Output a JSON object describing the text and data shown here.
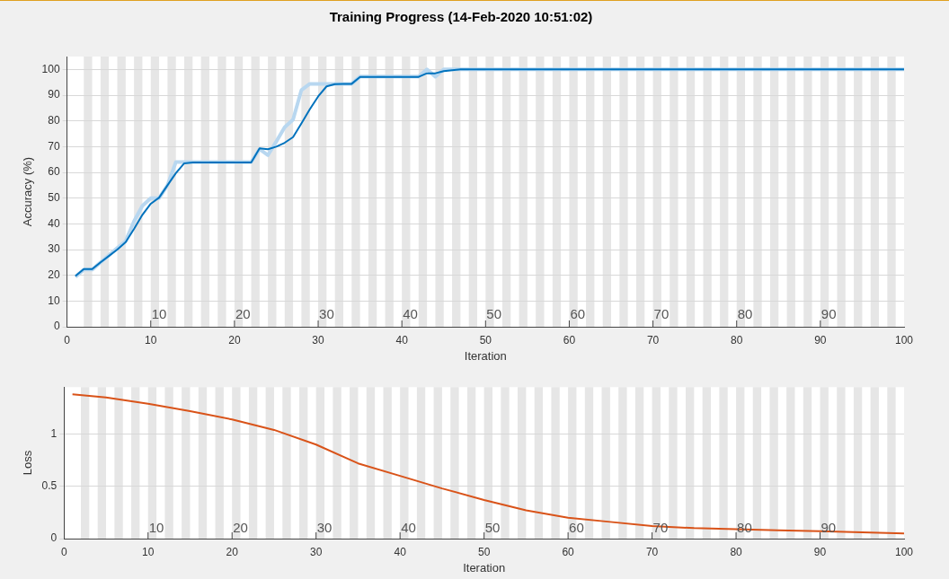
{
  "chart_data": [
    {
      "type": "line",
      "title": "Training Progress (14-Feb-2020 10:51:02)",
      "xlabel": "Iteration",
      "ylabel": "Accuracy (%)",
      "xlim": [
        0,
        100
      ],
      "xticks": [
        0,
        10,
        20,
        30,
        40,
        50,
        60,
        70,
        80,
        90,
        100
      ],
      "ylim": [
        0,
        105
      ],
      "yticks": [
        0,
        10,
        20,
        30,
        40,
        50,
        60,
        70,
        80,
        90,
        100
      ],
      "grid": "y",
      "legend": false,
      "marker": "none",
      "line_style": "solid",
      "series": [
        {
          "color": "#b8d7f0",
          "x": [
            1,
            2,
            3,
            4,
            5,
            6,
            7,
            8,
            9,
            10,
            11,
            12,
            13,
            14,
            15,
            16,
            17,
            18,
            19,
            20,
            21,
            22,
            23,
            24,
            25,
            26,
            27,
            28,
            29,
            30,
            31,
            32,
            33,
            34,
            35,
            36,
            37,
            38,
            39,
            40,
            41,
            42,
            43,
            44,
            45,
            100
          ],
          "values": [
            19.4,
            22.2,
            22.2,
            25,
            27.8,
            30.6,
            33.3,
            41,
            47,
            50,
            50,
            55,
            64,
            64,
            64,
            64,
            64,
            64,
            64,
            64,
            64,
            64,
            69,
            66.7,
            72,
            77.5,
            80.5,
            92,
            94.4,
            94.4,
            94.4,
            94.4,
            94.4,
            94.4,
            97.2,
            97.2,
            97.2,
            97.2,
            97.2,
            97.2,
            97.2,
            97.2,
            100,
            97.2,
            100,
            100
          ]
        },
        {
          "color": "#0072bd",
          "x": [
            1,
            2,
            3,
            4,
            5,
            6,
            7,
            8,
            9,
            10,
            11,
            12,
            13,
            14,
            15,
            16,
            17,
            18,
            19,
            20,
            21,
            22,
            23,
            24,
            25,
            26,
            27,
            28,
            29,
            30,
            31,
            32,
            33,
            34,
            35,
            36,
            37,
            38,
            39,
            40,
            41,
            42,
            43,
            44,
            45,
            46,
            47,
            100
          ],
          "values": [
            19.7,
            22.4,
            22.4,
            25,
            27.5,
            30,
            32.9,
            38,
            43.5,
            47.8,
            50.2,
            55,
            59.7,
            63.5,
            63.8,
            63.8,
            63.8,
            63.8,
            63.8,
            63.8,
            63.8,
            63.8,
            69.3,
            69,
            70,
            71.5,
            73.7,
            79,
            84.5,
            89.5,
            93.4,
            94.3,
            94.4,
            94.4,
            97.1,
            97.1,
            97.1,
            97.1,
            97.1,
            97.1,
            97.1,
            97.1,
            98.5,
            98.5,
            99.3,
            99.7,
            100,
            100
          ]
        }
      ],
      "annotations": [
        {
          "text": "10",
          "x": 10,
          "y": 2
        },
        {
          "text": "20",
          "x": 20,
          "y": 2
        },
        {
          "text": "30",
          "x": 30,
          "y": 2
        },
        {
          "text": "40",
          "x": 40,
          "y": 2
        },
        {
          "text": "50",
          "x": 50,
          "y": 2
        },
        {
          "text": "60",
          "x": 60,
          "y": 2
        },
        {
          "text": "70",
          "x": 70,
          "y": 2
        },
        {
          "text": "80",
          "x": 80,
          "y": 2
        },
        {
          "text": "90",
          "x": 90,
          "y": 2
        }
      ],
      "bands": [
        {
          "axis": "x",
          "from": 2,
          "to": 3,
          "color": "#e6e6e6"
        },
        {
          "axis": "x",
          "from": 4,
          "to": 5,
          "color": "#e6e6e6"
        },
        {
          "axis": "x",
          "from": 6,
          "to": 7,
          "color": "#e6e6e6"
        },
        {
          "axis": "x",
          "from": 8,
          "to": 9,
          "color": "#e6e6e6"
        },
        {
          "axis": "x",
          "from": 10,
          "to": 11,
          "color": "#e6e6e6"
        },
        {
          "axis": "x",
          "from": 12,
          "to": 13,
          "color": "#e6e6e6"
        },
        {
          "axis": "x",
          "from": 14,
          "to": 15,
          "color": "#e6e6e6"
        },
        {
          "axis": "x",
          "from": 16,
          "to": 17,
          "color": "#e6e6e6"
        },
        {
          "axis": "x",
          "from": 18,
          "to": 19,
          "color": "#e6e6e6"
        },
        {
          "axis": "x",
          "from": 20,
          "to": 21,
          "color": "#e6e6e6"
        },
        {
          "axis": "x",
          "from": 22,
          "to": 23,
          "color": "#e6e6e6"
        },
        {
          "axis": "x",
          "from": 24,
          "to": 25,
          "color": "#e6e6e6"
        },
        {
          "axis": "x",
          "from": 26,
          "to": 27,
          "color": "#e6e6e6"
        },
        {
          "axis": "x",
          "from": 28,
          "to": 29,
          "color": "#e6e6e6"
        },
        {
          "axis": "x",
          "from": 30,
          "to": 31,
          "color": "#e6e6e6"
        },
        {
          "axis": "x",
          "from": 32,
          "to": 33,
          "color": "#e6e6e6"
        },
        {
          "axis": "x",
          "from": 34,
          "to": 35,
          "color": "#e6e6e6"
        },
        {
          "axis": "x",
          "from": 36,
          "to": 37,
          "color": "#e6e6e6"
        },
        {
          "axis": "x",
          "from": 38,
          "to": 39,
          "color": "#e6e6e6"
        },
        {
          "axis": "x",
          "from": 40,
          "to": 41,
          "color": "#e6e6e6"
        },
        {
          "axis": "x",
          "from": 42,
          "to": 43,
          "color": "#e6e6e6"
        },
        {
          "axis": "x",
          "from": 44,
          "to": 45,
          "color": "#e6e6e6"
        },
        {
          "axis": "x",
          "from": 46,
          "to": 47,
          "color": "#e6e6e6"
        },
        {
          "axis": "x",
          "from": 48,
          "to": 49,
          "color": "#e6e6e6"
        },
        {
          "axis": "x",
          "from": 50,
          "to": 51,
          "color": "#e6e6e6"
        },
        {
          "axis": "x",
          "from": 52,
          "to": 53,
          "color": "#e6e6e6"
        },
        {
          "axis": "x",
          "from": 54,
          "to": 55,
          "color": "#e6e6e6"
        },
        {
          "axis": "x",
          "from": 56,
          "to": 57,
          "color": "#e6e6e6"
        },
        {
          "axis": "x",
          "from": 58,
          "to": 59,
          "color": "#e6e6e6"
        },
        {
          "axis": "x",
          "from": 60,
          "to": 61,
          "color": "#e6e6e6"
        },
        {
          "axis": "x",
          "from": 62,
          "to": 63,
          "color": "#e6e6e6"
        },
        {
          "axis": "x",
          "from": 64,
          "to": 65,
          "color": "#e6e6e6"
        },
        {
          "axis": "x",
          "from": 66,
          "to": 67,
          "color": "#e6e6e6"
        },
        {
          "axis": "x",
          "from": 68,
          "to": 69,
          "color": "#e6e6e6"
        },
        {
          "axis": "x",
          "from": 70,
          "to": 71,
          "color": "#e6e6e6"
        },
        {
          "axis": "x",
          "from": 72,
          "to": 73,
          "color": "#e6e6e6"
        },
        {
          "axis": "x",
          "from": 74,
          "to": 75,
          "color": "#e6e6e6"
        },
        {
          "axis": "x",
          "from": 76,
          "to": 77,
          "color": "#e6e6e6"
        },
        {
          "axis": "x",
          "from": 78,
          "to": 79,
          "color": "#e6e6e6"
        },
        {
          "axis": "x",
          "from": 80,
          "to": 81,
          "color": "#e6e6e6"
        },
        {
          "axis": "x",
          "from": 82,
          "to": 83,
          "color": "#e6e6e6"
        },
        {
          "axis": "x",
          "from": 84,
          "to": 85,
          "color": "#e6e6e6"
        },
        {
          "axis": "x",
          "from": 86,
          "to": 87,
          "color": "#e6e6e6"
        },
        {
          "axis": "x",
          "from": 88,
          "to": 89,
          "color": "#e6e6e6"
        },
        {
          "axis": "x",
          "from": 90,
          "to": 91,
          "color": "#e6e6e6"
        },
        {
          "axis": "x",
          "from": 92,
          "to": 93,
          "color": "#e6e6e6"
        },
        {
          "axis": "x",
          "from": 94,
          "to": 95,
          "color": "#e6e6e6"
        },
        {
          "axis": "x",
          "from": 96,
          "to": 97,
          "color": "#e6e6e6"
        },
        {
          "axis": "x",
          "from": 98,
          "to": 99,
          "color": "#e6e6e6"
        }
      ]
    },
    {
      "type": "line",
      "xlabel": "Iteration",
      "ylabel": "Loss",
      "xlim": [
        0,
        100
      ],
      "xticks": [
        0,
        10,
        20,
        30,
        40,
        50,
        60,
        70,
        80,
        90,
        100
      ],
      "ylim": [
        0,
        1.45
      ],
      "yticks": [
        0,
        0.5,
        1
      ],
      "grid": "y",
      "legend": false,
      "marker": "none",
      "line_style": "solid",
      "series": [
        {
          "color": "#d95319",
          "x": [
            1,
            5,
            10,
            15,
            20,
            25,
            30,
            35,
            40,
            45,
            50,
            55,
            60,
            65,
            70,
            75,
            80,
            85,
            90,
            95,
            100
          ],
          "values": [
            1.38,
            1.35,
            1.29,
            1.22,
            1.14,
            1.04,
            0.9,
            0.72,
            0.6,
            0.48,
            0.37,
            0.27,
            0.2,
            0.16,
            0.12,
            0.1,
            0.09,
            0.08,
            0.07,
            0.06,
            0.05
          ]
        }
      ],
      "annotations": [
        {
          "text": "10",
          "x": 10,
          "y": 0.03
        },
        {
          "text": "20",
          "x": 20,
          "y": 0.03
        },
        {
          "text": "30",
          "x": 30,
          "y": 0.03
        },
        {
          "text": "40",
          "x": 40,
          "y": 0.03
        },
        {
          "text": "50",
          "x": 50,
          "y": 0.03
        },
        {
          "text": "60",
          "x": 60,
          "y": 0.03
        },
        {
          "text": "70",
          "x": 70,
          "y": 0.03
        },
        {
          "text": "80",
          "x": 80,
          "y": 0.03
        },
        {
          "text": "90",
          "x": 90,
          "y": 0.03
        }
      ],
      "bands": [
        {
          "axis": "x",
          "from": 2,
          "to": 3,
          "color": "#e6e6e6"
        },
        {
          "axis": "x",
          "from": 4,
          "to": 5,
          "color": "#e6e6e6"
        },
        {
          "axis": "x",
          "from": 6,
          "to": 7,
          "color": "#e6e6e6"
        },
        {
          "axis": "x",
          "from": 8,
          "to": 9,
          "color": "#e6e6e6"
        },
        {
          "axis": "x",
          "from": 10,
          "to": 11,
          "color": "#e6e6e6"
        },
        {
          "axis": "x",
          "from": 12,
          "to": 13,
          "color": "#e6e6e6"
        },
        {
          "axis": "x",
          "from": 14,
          "to": 15,
          "color": "#e6e6e6"
        },
        {
          "axis": "x",
          "from": 16,
          "to": 17,
          "color": "#e6e6e6"
        },
        {
          "axis": "x",
          "from": 18,
          "to": 19,
          "color": "#e6e6e6"
        },
        {
          "axis": "x",
          "from": 20,
          "to": 21,
          "color": "#e6e6e6"
        },
        {
          "axis": "x",
          "from": 22,
          "to": 23,
          "color": "#e6e6e6"
        },
        {
          "axis": "x",
          "from": 24,
          "to": 25,
          "color": "#e6e6e6"
        },
        {
          "axis": "x",
          "from": 26,
          "to": 27,
          "color": "#e6e6e6"
        },
        {
          "axis": "x",
          "from": 28,
          "to": 29,
          "color": "#e6e6e6"
        },
        {
          "axis": "x",
          "from": 30,
          "to": 31,
          "color": "#e6e6e6"
        },
        {
          "axis": "x",
          "from": 32,
          "to": 33,
          "color": "#e6e6e6"
        },
        {
          "axis": "x",
          "from": 34,
          "to": 35,
          "color": "#e6e6e6"
        },
        {
          "axis": "x",
          "from": 36,
          "to": 37,
          "color": "#e6e6e6"
        },
        {
          "axis": "x",
          "from": 38,
          "to": 39,
          "color": "#e6e6e6"
        },
        {
          "axis": "x",
          "from": 40,
          "to": 41,
          "color": "#e6e6e6"
        },
        {
          "axis": "x",
          "from": 42,
          "to": 43,
          "color": "#e6e6e6"
        },
        {
          "axis": "x",
          "from": 44,
          "to": 45,
          "color": "#e6e6e6"
        },
        {
          "axis": "x",
          "from": 46,
          "to": 47,
          "color": "#e6e6e6"
        },
        {
          "axis": "x",
          "from": 48,
          "to": 49,
          "color": "#e6e6e6"
        },
        {
          "axis": "x",
          "from": 50,
          "to": 51,
          "color": "#e6e6e6"
        },
        {
          "axis": "x",
          "from": 52,
          "to": 53,
          "color": "#e6e6e6"
        },
        {
          "axis": "x",
          "from": 54,
          "to": 55,
          "color": "#e6e6e6"
        },
        {
          "axis": "x",
          "from": 56,
          "to": 57,
          "color": "#e6e6e6"
        },
        {
          "axis": "x",
          "from": 58,
          "to": 59,
          "color": "#e6e6e6"
        },
        {
          "axis": "x",
          "from": 60,
          "to": 61,
          "color": "#e6e6e6"
        },
        {
          "axis": "x",
          "from": 62,
          "to": 63,
          "color": "#e6e6e6"
        },
        {
          "axis": "x",
          "from": 64,
          "to": 65,
          "color": "#e6e6e6"
        },
        {
          "axis": "x",
          "from": 66,
          "to": 67,
          "color": "#e6e6e6"
        },
        {
          "axis": "x",
          "from": 68,
          "to": 69,
          "color": "#e6e6e6"
        },
        {
          "axis": "x",
          "from": 70,
          "to": 71,
          "color": "#e6e6e6"
        },
        {
          "axis": "x",
          "from": 72,
          "to": 73,
          "color": "#e6e6e6"
        },
        {
          "axis": "x",
          "from": 74,
          "to": 75,
          "color": "#e6e6e6"
        },
        {
          "axis": "x",
          "from": 76,
          "to": 77,
          "color": "#e6e6e6"
        },
        {
          "axis": "x",
          "from": 78,
          "to": 79,
          "color": "#e6e6e6"
        },
        {
          "axis": "x",
          "from": 80,
          "to": 81,
          "color": "#e6e6e6"
        },
        {
          "axis": "x",
          "from": 82,
          "to": 83,
          "color": "#e6e6e6"
        },
        {
          "axis": "x",
          "from": 84,
          "to": 85,
          "color": "#e6e6e6"
        },
        {
          "axis": "x",
          "from": 86,
          "to": 87,
          "color": "#e6e6e6"
        },
        {
          "axis": "x",
          "from": 88,
          "to": 89,
          "color": "#e6e6e6"
        },
        {
          "axis": "x",
          "from": 90,
          "to": 91,
          "color": "#e6e6e6"
        },
        {
          "axis": "x",
          "from": 92,
          "to": 93,
          "color": "#e6e6e6"
        },
        {
          "axis": "x",
          "from": 94,
          "to": 95,
          "color": "#e6e6e6"
        },
        {
          "axis": "x",
          "from": 96,
          "to": 97,
          "color": "#e6e6e6"
        },
        {
          "axis": "x",
          "from": 98,
          "to": 99,
          "color": "#e6e6e6"
        }
      ]
    }
  ]
}
